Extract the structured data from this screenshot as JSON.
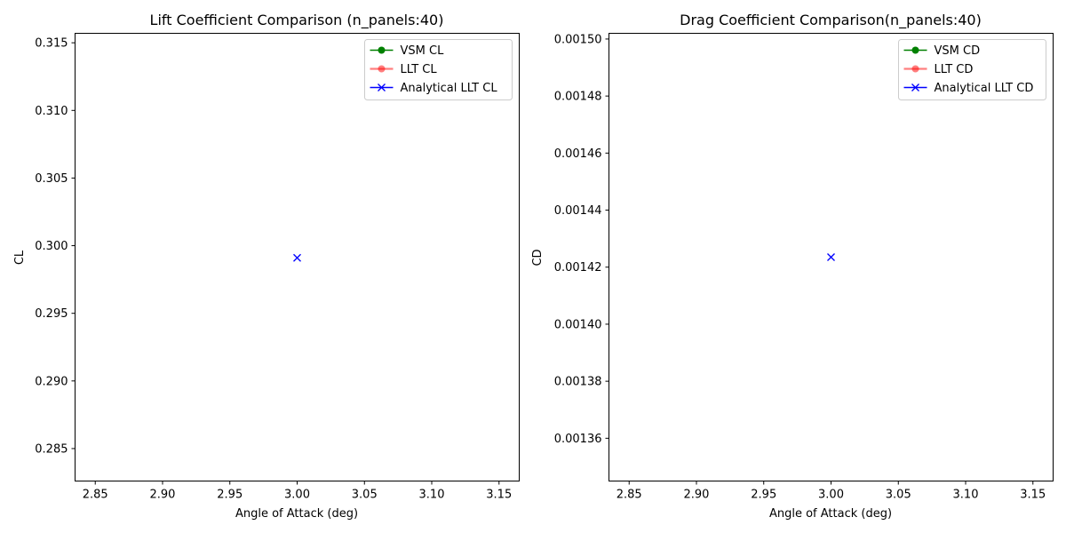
{
  "chart_data": [
    {
      "type": "line",
      "title": "Lift Coefficient Comparison (n_panels:40)",
      "xlabel": "Angle of Attack (deg)",
      "ylabel": "CL",
      "xlim": [
        2.835,
        3.165
      ],
      "ylim": [
        0.2826,
        0.3157
      ],
      "xticks": [
        "2.85",
        "2.90",
        "2.95",
        "3.00",
        "3.05",
        "3.10",
        "3.15"
      ],
      "yticks": [
        "0.285",
        "0.290",
        "0.295",
        "0.300",
        "0.305",
        "0.310",
        "0.315"
      ],
      "grid": false,
      "legend_position": "top-right",
      "series": [
        {
          "name": "VSM CL",
          "color": "#008000",
          "marker": "circle",
          "x": [],
          "y": []
        },
        {
          "name": "LLT CL",
          "color": "#ff0000",
          "opacity": 0.5,
          "marker": "circle",
          "x": [],
          "y": []
        },
        {
          "name": "Analytical LLT CL",
          "color": "#0000ff",
          "marker": "x",
          "x": [
            3.0
          ],
          "y": [
            0.2991
          ]
        }
      ]
    },
    {
      "type": "line",
      "title": "Drag Coefficient Comparison(n_panels:40)",
      "xlabel": "Angle of Attack (deg)",
      "ylabel": "CD",
      "xlim": [
        2.835,
        3.165
      ],
      "ylim": [
        0.001345,
        0.001502
      ],
      "xticks": [
        "2.85",
        "2.90",
        "2.95",
        "3.00",
        "3.05",
        "3.10",
        "3.15"
      ],
      "yticks": [
        "0.00136",
        "0.00138",
        "0.00140",
        "0.00142",
        "0.00144",
        "0.00146",
        "0.00148",
        "0.00150"
      ],
      "grid": false,
      "legend_position": "top-right",
      "series": [
        {
          "name": "VSM CD",
          "color": "#008000",
          "marker": "circle",
          "x": [],
          "y": []
        },
        {
          "name": "LLT CD",
          "color": "#ff0000",
          "opacity": 0.5,
          "marker": "circle",
          "x": [],
          "y": []
        },
        {
          "name": "Analytical LLT CD",
          "color": "#0000ff",
          "marker": "x",
          "x": [
            3.0
          ],
          "y": [
            0.0014235
          ]
        }
      ]
    }
  ]
}
